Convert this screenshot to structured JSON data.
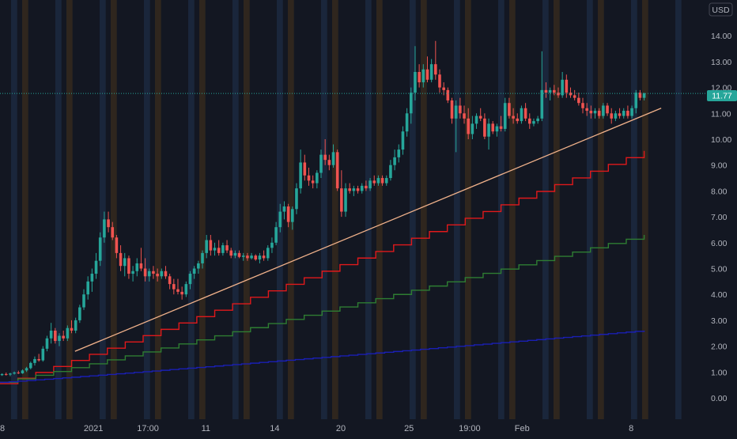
{
  "chart": {
    "currency_label": "USD",
    "last_price_label": "11.77"
  },
  "chart_data": {
    "type": "candlestick",
    "ylim": [
      -0.5,
      15.2
    ],
    "y_ticks": [
      0,
      1,
      2,
      3,
      4,
      5,
      6,
      7,
      8,
      9,
      10,
      11,
      12,
      13,
      14
    ],
    "y_tick_labels": [
      "0.00",
      "1.00",
      "2.00",
      "3.00",
      "4.00",
      "5.00",
      "6.00",
      "7.00",
      "8.00",
      "9.00",
      "10.00",
      "11.00",
      "12.00",
      "13.00",
      "14.00"
    ],
    "x_range": [
      0,
      100
    ],
    "x_ticks": [
      {
        "x": 0.0,
        "label": "8"
      },
      {
        "x": 13.7,
        "label": "2021"
      },
      {
        "x": 21.7,
        "label": "17:00"
      },
      {
        "x": 30.2,
        "label": "11"
      },
      {
        "x": 40.3,
        "label": "14"
      },
      {
        "x": 50.0,
        "label": "20"
      },
      {
        "x": 60.0,
        "label": "25"
      },
      {
        "x": 68.9,
        "label": "19:00"
      },
      {
        "x": 76.6,
        "label": "Feb"
      },
      {
        "x": 92.6,
        "label": "8"
      }
    ],
    "last_price": 11.77,
    "colors": {
      "up": "#26a69a",
      "down": "#ef5350",
      "trendline": "#f0b18a",
      "step_red": "#e0191b",
      "step_green": "#2e7d32",
      "step_blue": "#1a1fb3",
      "price_line": "#26a69a",
      "background": "#131722",
      "stripe_blue": "#1c2940",
      "stripe_orange": "#35291d"
    },
    "candles": [
      [
        0.3,
        0.88,
        0.95,
        0.85,
        0.92
      ],
      [
        0.9,
        0.92,
        0.98,
        0.86,
        0.9
      ],
      [
        1.5,
        0.9,
        0.97,
        0.84,
        0.94
      ],
      [
        2.1,
        0.94,
        1.02,
        0.9,
        0.98
      ],
      [
        2.7,
        0.98,
        1.05,
        0.92,
        0.95
      ],
      [
        3.3,
        0.95,
        1.1,
        0.93,
        1.06
      ],
      [
        3.9,
        1.06,
        1.2,
        1.0,
        1.15
      ],
      [
        4.5,
        1.15,
        1.4,
        1.1,
        1.35
      ],
      [
        5.1,
        1.35,
        1.6,
        1.25,
        1.5
      ],
      [
        5.7,
        1.5,
        1.7,
        1.4,
        1.45
      ],
      [
        6.3,
        1.45,
        2.0,
        1.4,
        1.9
      ],
      [
        6.9,
        1.9,
        2.4,
        1.8,
        2.3
      ],
      [
        7.5,
        2.3,
        2.9,
        2.1,
        2.6
      ],
      [
        8.1,
        2.6,
        2.7,
        2.1,
        2.2
      ],
      [
        8.7,
        2.2,
        2.5,
        2.0,
        2.4
      ],
      [
        9.3,
        2.4,
        2.6,
        2.2,
        2.3
      ],
      [
        9.9,
        2.3,
        2.8,
        2.2,
        2.7
      ],
      [
        10.5,
        2.7,
        3.0,
        2.5,
        2.6
      ],
      [
        11.1,
        2.6,
        3.1,
        2.5,
        3.0
      ],
      [
        11.7,
        3.0,
        3.6,
        2.9,
        3.5
      ],
      [
        12.3,
        3.5,
        4.2,
        3.4,
        4.0
      ],
      [
        12.9,
        4.0,
        4.7,
        3.8,
        4.5
      ],
      [
        13.5,
        4.5,
        5.0,
        4.1,
        4.8
      ],
      [
        14.1,
        4.8,
        5.6,
        4.6,
        5.3
      ],
      [
        14.7,
        5.3,
        6.4,
        5.1,
        6.2
      ],
      [
        15.3,
        6.2,
        7.2,
        6.0,
        6.9
      ],
      [
        15.9,
        6.9,
        7.2,
        6.4,
        6.6
      ],
      [
        16.5,
        6.6,
        6.8,
        6.1,
        6.2
      ],
      [
        17.1,
        6.2,
        6.3,
        5.4,
        5.6
      ],
      [
        17.7,
        5.6,
        5.9,
        4.9,
        5.1
      ],
      [
        18.3,
        5.1,
        5.6,
        4.7,
        5.4
      ],
      [
        18.9,
        5.4,
        5.5,
        4.6,
        4.8
      ],
      [
        19.5,
        4.8,
        5.1,
        4.5,
        4.9
      ],
      [
        20.1,
        4.9,
        5.4,
        4.7,
        5.2
      ],
      [
        20.7,
        5.2,
        5.8,
        4.9,
        5.0
      ],
      [
        21.3,
        5.0,
        5.4,
        4.5,
        4.7
      ],
      [
        21.9,
        4.7,
        5.0,
        4.5,
        4.9
      ],
      [
        22.5,
        4.9,
        5.1,
        4.6,
        4.8
      ],
      [
        23.1,
        4.8,
        5.0,
        4.5,
        4.7
      ],
      [
        23.7,
        4.7,
        5.0,
        4.6,
        4.9
      ],
      [
        24.3,
        4.9,
        5.1,
        4.6,
        4.7
      ],
      [
        24.9,
        4.7,
        4.8,
        4.2,
        4.4
      ],
      [
        25.5,
        4.4,
        4.6,
        4.0,
        4.2
      ],
      [
        26.1,
        4.2,
        4.6,
        4.0,
        4.1
      ],
      [
        26.7,
        4.1,
        4.3,
        3.8,
        4.0
      ],
      [
        27.3,
        4.0,
        4.5,
        3.9,
        4.4
      ],
      [
        27.9,
        4.4,
        4.9,
        4.2,
        4.8
      ],
      [
        28.5,
        4.8,
        5.1,
        4.6,
        5.0
      ],
      [
        29.1,
        5.0,
        5.3,
        4.8,
        5.2
      ],
      [
        29.7,
        5.2,
        5.7,
        5.0,
        5.6
      ],
      [
        30.3,
        5.6,
        6.3,
        5.4,
        6.1
      ],
      [
        30.9,
        6.1,
        6.3,
        5.5,
        5.7
      ],
      [
        31.5,
        5.7,
        6.0,
        5.5,
        5.8
      ],
      [
        32.1,
        5.8,
        6.1,
        5.5,
        5.6
      ],
      [
        32.7,
        5.6,
        6.0,
        5.5,
        5.9
      ],
      [
        33.3,
        5.9,
        6.1,
        5.6,
        5.7
      ],
      [
        33.9,
        5.7,
        5.8,
        5.4,
        5.5
      ],
      [
        34.5,
        5.5,
        5.7,
        5.4,
        5.6
      ],
      [
        35.1,
        5.6,
        5.7,
        5.4,
        5.45
      ],
      [
        35.7,
        5.45,
        5.6,
        5.3,
        5.5
      ],
      [
        36.3,
        5.5,
        5.6,
        5.3,
        5.4
      ],
      [
        36.9,
        5.4,
        5.6,
        5.35,
        5.5
      ],
      [
        37.5,
        5.5,
        5.55,
        5.3,
        5.35
      ],
      [
        38.1,
        5.35,
        5.6,
        5.2,
        5.5
      ],
      [
        38.7,
        5.5,
        5.7,
        5.3,
        5.4
      ],
      [
        39.3,
        5.4,
        5.9,
        5.3,
        5.8
      ],
      [
        39.9,
        5.8,
        6.2,
        5.6,
        6.0
      ],
      [
        40.5,
        6.0,
        6.8,
        5.9,
        6.6
      ],
      [
        41.1,
        6.6,
        7.5,
        6.4,
        7.2
      ],
      [
        41.7,
        7.2,
        7.6,
        6.9,
        7.4
      ],
      [
        42.3,
        7.4,
        7.5,
        6.6,
        6.8
      ],
      [
        42.9,
        6.8,
        7.4,
        6.5,
        7.3
      ],
      [
        43.5,
        7.3,
        8.3,
        7.1,
        8.1
      ],
      [
        44.1,
        8.1,
        9.6,
        7.9,
        9.1
      ],
      [
        44.7,
        9.1,
        9.4,
        8.4,
        8.6
      ],
      [
        45.3,
        8.6,
        8.9,
        8.2,
        8.4
      ],
      [
        45.9,
        8.4,
        8.6,
        8.1,
        8.3
      ],
      [
        46.5,
        8.3,
        8.8,
        8.1,
        8.7
      ],
      [
        47.1,
        8.7,
        9.6,
        8.5,
        9.4
      ],
      [
        47.7,
        9.4,
        10.0,
        9.0,
        9.2
      ],
      [
        48.3,
        9.2,
        9.4,
        8.8,
        9.0
      ],
      [
        48.9,
        9.0,
        9.8,
        8.9,
        9.5
      ],
      [
        49.5,
        9.5,
        9.6,
        8.0,
        8.1
      ],
      [
        50.1,
        8.1,
        8.8,
        7.0,
        7.2
      ],
      [
        50.7,
        7.2,
        8.3,
        7.0,
        8.1
      ],
      [
        51.3,
        8.1,
        8.3,
        7.9,
        8.0
      ],
      [
        51.9,
        8.0,
        8.2,
        7.8,
        8.1
      ],
      [
        52.5,
        8.1,
        8.2,
        7.9,
        8.0
      ],
      [
        53.1,
        8.0,
        8.3,
        7.9,
        8.2
      ],
      [
        53.7,
        8.2,
        8.4,
        8.0,
        8.1
      ],
      [
        54.3,
        8.1,
        8.5,
        8.0,
        8.4
      ],
      [
        54.9,
        8.4,
        8.6,
        8.2,
        8.3
      ],
      [
        55.5,
        8.3,
        8.6,
        8.2,
        8.5
      ],
      [
        56.1,
        8.5,
        8.6,
        8.2,
        8.3
      ],
      [
        56.7,
        8.3,
        8.6,
        8.2,
        8.5
      ],
      [
        57.3,
        8.5,
        9.2,
        8.4,
        9.0
      ],
      [
        57.9,
        9.0,
        9.6,
        8.8,
        9.3
      ],
      [
        58.5,
        9.3,
        9.8,
        9.1,
        9.6
      ],
      [
        59.1,
        9.6,
        10.5,
        9.4,
        10.3
      ],
      [
        59.7,
        10.3,
        11.2,
        10.1,
        11.0
      ],
      [
        60.3,
        11.0,
        12.0,
        10.6,
        11.8
      ],
      [
        60.9,
        11.8,
        13.6,
        11.5,
        12.6
      ],
      [
        61.5,
        12.6,
        12.9,
        12.0,
        12.2
      ],
      [
        62.1,
        12.2,
        12.9,
        12.0,
        12.7
      ],
      [
        62.7,
        12.7,
        13.2,
        12.2,
        12.3
      ],
      [
        63.3,
        12.3,
        13.1,
        12.2,
        12.9
      ],
      [
        63.9,
        12.9,
        13.8,
        12.3,
        12.5
      ],
      [
        64.5,
        12.5,
        12.7,
        11.8,
        12.0
      ],
      [
        65.1,
        12.0,
        12.2,
        11.7,
        11.9
      ],
      [
        65.7,
        11.9,
        12.0,
        11.4,
        11.5
      ],
      [
        66.3,
        11.5,
        11.6,
        10.6,
        10.8
      ],
      [
        66.9,
        10.8,
        11.5,
        9.5,
        11.3
      ],
      [
        67.5,
        11.3,
        11.6,
        10.8,
        11.0
      ],
      [
        68.1,
        11.0,
        11.3,
        10.6,
        10.8
      ],
      [
        68.7,
        10.8,
        11.2,
        10.0,
        10.2
      ],
      [
        69.3,
        10.2,
        10.9,
        10.0,
        10.6
      ],
      [
        69.9,
        10.6,
        11.0,
        10.4,
        10.9
      ],
      [
        70.5,
        10.9,
        11.2,
        10.7,
        10.8
      ],
      [
        71.1,
        10.8,
        11.0,
        10.0,
        10.1
      ],
      [
        71.7,
        10.1,
        10.8,
        9.6,
        10.6
      ],
      [
        72.3,
        10.6,
        10.7,
        10.2,
        10.3
      ],
      [
        72.9,
        10.3,
        10.6,
        10.1,
        10.5
      ],
      [
        73.5,
        10.5,
        10.9,
        10.3,
        10.4
      ],
      [
        74.1,
        10.4,
        11.6,
        10.3,
        11.4
      ],
      [
        74.7,
        11.4,
        11.6,
        10.8,
        10.9
      ],
      [
        75.3,
        10.9,
        11.2,
        10.6,
        10.8
      ],
      [
        75.9,
        10.8,
        11.0,
        10.6,
        10.7
      ],
      [
        76.5,
        10.7,
        11.3,
        10.6,
        11.2
      ],
      [
        77.1,
        11.2,
        11.4,
        10.7,
        10.8
      ],
      [
        77.7,
        10.8,
        11.0,
        10.4,
        10.6
      ],
      [
        78.3,
        10.6,
        10.8,
        10.5,
        10.7
      ],
      [
        78.9,
        10.7,
        10.9,
        10.6,
        10.8
      ],
      [
        79.5,
        10.8,
        13.4,
        10.7,
        11.9
      ],
      [
        80.1,
        11.9,
        12.2,
        11.6,
        11.8
      ],
      [
        80.7,
        11.8,
        12.0,
        11.5,
        11.9
      ],
      [
        81.3,
        11.9,
        12.1,
        11.7,
        11.8
      ],
      [
        81.9,
        11.8,
        12.0,
        11.6,
        11.7
      ],
      [
        82.5,
        11.7,
        12.6,
        11.6,
        12.3
      ],
      [
        83.1,
        12.3,
        12.5,
        11.6,
        11.8
      ],
      [
        83.7,
        11.8,
        12.0,
        11.6,
        11.7
      ],
      [
        84.3,
        11.7,
        11.9,
        11.5,
        11.6
      ],
      [
        84.9,
        11.6,
        11.8,
        11.3,
        11.4
      ],
      [
        85.5,
        11.4,
        11.6,
        11.0,
        11.2
      ],
      [
        86.1,
        11.2,
        11.4,
        10.9,
        11.1
      ],
      [
        86.7,
        11.1,
        11.3,
        10.8,
        11.0
      ],
      [
        87.3,
        11.0,
        11.2,
        10.8,
        11.1
      ],
      [
        87.9,
        11.1,
        11.2,
        10.8,
        10.9
      ],
      [
        88.5,
        10.9,
        11.4,
        10.8,
        11.3
      ],
      [
        89.1,
        11.3,
        11.4,
        10.9,
        11.0
      ],
      [
        89.7,
        11.0,
        11.2,
        10.6,
        10.8
      ],
      [
        90.3,
        10.8,
        11.1,
        10.7,
        11.0
      ],
      [
        90.9,
        11.0,
        11.2,
        10.8,
        10.9
      ],
      [
        91.5,
        10.9,
        11.2,
        10.8,
        11.1
      ],
      [
        92.1,
        11.1,
        11.3,
        10.8,
        10.9
      ],
      [
        92.7,
        10.9,
        11.3,
        10.8,
        11.2
      ],
      [
        93.3,
        11.2,
        11.9,
        11.0,
        11.8
      ],
      [
        93.9,
        11.8,
        11.9,
        11.5,
        11.6
      ],
      [
        94.5,
        11.6,
        11.8,
        11.5,
        11.77
      ]
    ],
    "trendline": {
      "x": [
        11.0,
        97.0
      ],
      "y": [
        1.8,
        11.2
      ]
    },
    "step_series": [
      {
        "color_key": "step_red",
        "x0": 0.0,
        "x1": 94.5,
        "y0": 0.55,
        "y1": 9.55,
        "steps": 36
      },
      {
        "color_key": "step_green",
        "x0": 0.0,
        "x1": 94.5,
        "y0": 0.6,
        "y1": 6.3,
        "steps": 36
      },
      {
        "color_key": "step_blue",
        "x0": 0.0,
        "x1": 94.5,
        "y0": 0.6,
        "y1": 2.6,
        "steps": 72
      }
    ]
  }
}
